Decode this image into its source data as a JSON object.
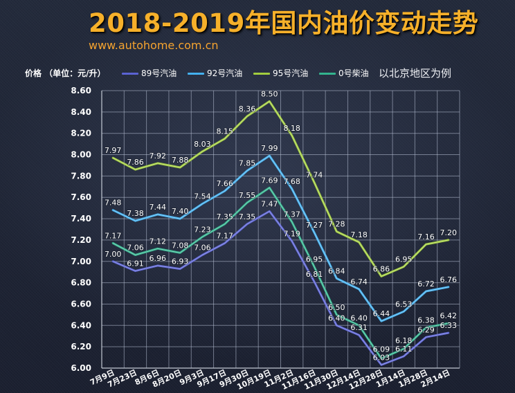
{
  "chart_data": {
    "type": "line",
    "title": "2018-2019年国内油价变动走势",
    "subtitle": "www.autohome.com.cn",
    "ylabel": "价格 （单位：元/升）",
    "note": "以北京地区为例",
    "categories": [
      "7月9日",
      "7月23日",
      "8月6日",
      "8月20日",
      "9月3日",
      "9月17日",
      "9月30日",
      "10月19日",
      "11月2日",
      "11月16日",
      "11月30日",
      "12月14日",
      "12月28日",
      "1月14日",
      "1月28日",
      "2月14日"
    ],
    "yticks": [
      "6.00",
      "6.20",
      "6.40",
      "6.60",
      "6.80",
      "7.00",
      "7.20",
      "7.40",
      "7.60",
      "7.80",
      "8.00",
      "8.20",
      "8.40",
      "8.60"
    ],
    "ylim": [
      6.0,
      8.6
    ],
    "grid": true,
    "legend_position": "top",
    "data_labels": true,
    "series": [
      {
        "name": "89号汽油",
        "color": "#5b63d3",
        "values": [
          7.0,
          6.91,
          6.96,
          6.93,
          7.06,
          7.17,
          7.35,
          7.47,
          7.19,
          6.81,
          6.4,
          6.31,
          6.03,
          6.11,
          6.29,
          6.33
        ]
      },
      {
        "name": "92号汽油",
        "color": "#44b0ee",
        "values": [
          7.48,
          7.38,
          7.44,
          7.4,
          7.54,
          7.66,
          7.85,
          7.99,
          7.68,
          7.27,
          6.84,
          6.74,
          6.44,
          6.53,
          6.72,
          6.76
        ]
      },
      {
        "name": "95号汽油",
        "color": "#a2cd3e",
        "values": [
          7.97,
          7.86,
          7.92,
          7.88,
          8.03,
          8.15,
          8.36,
          8.5,
          8.18,
          7.74,
          7.28,
          7.18,
          6.86,
          6.95,
          7.16,
          7.2
        ]
      },
      {
        "name": "0号柴油",
        "color": "#33b48e",
        "values": [
          7.17,
          7.06,
          7.12,
          7.08,
          7.23,
          7.35,
          7.55,
          7.69,
          7.37,
          6.95,
          6.5,
          6.4,
          6.09,
          6.18,
          6.38,
          6.42
        ]
      }
    ]
  },
  "colors": {
    "title": "#f6b02a",
    "website": "#f5a32f"
  }
}
